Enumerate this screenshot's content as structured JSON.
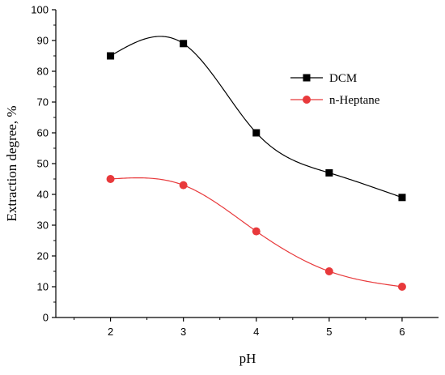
{
  "chart_data": {
    "type": "line",
    "title": "",
    "xlabel": "pH",
    "ylabel": "Extraction degree, %",
    "x": [
      2,
      3,
      4,
      5,
      6
    ],
    "xlim": [
      1.25,
      6.5
    ],
    "ylim": [
      0,
      100
    ],
    "xticks": [
      2,
      3,
      4,
      5,
      6
    ],
    "yticks": [
      0,
      10,
      20,
      30,
      40,
      50,
      60,
      70,
      80,
      90,
      100
    ],
    "grid": false,
    "legend_position": "top-right",
    "series": [
      {
        "name": "DCM",
        "values": [
          85,
          89,
          60,
          47,
          39
        ],
        "color": "#000000",
        "marker": "square",
        "smooth": true
      },
      {
        "name": "n-Heptane",
        "values": [
          45,
          43,
          28,
          15,
          10
        ],
        "color": "#e8393b",
        "marker": "circle",
        "smooth": true
      }
    ]
  }
}
